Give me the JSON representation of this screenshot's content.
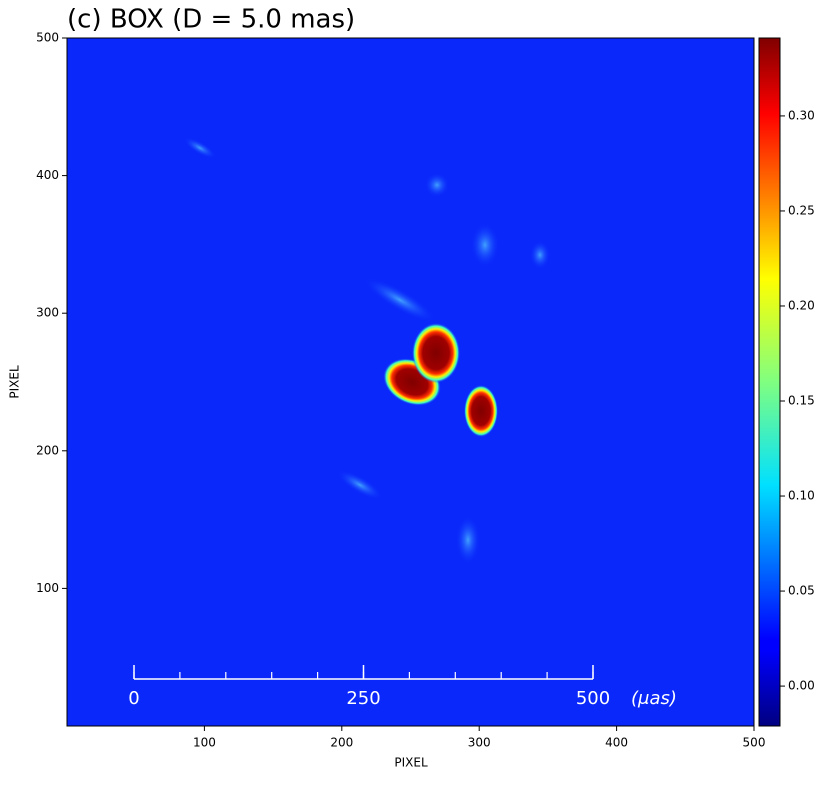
{
  "chart_data": {
    "type": "image",
    "title": "(c) BOX (D = 5.0 mas)",
    "x_label": "PIXEL",
    "y_label": "PIXEL",
    "xlim": [
      0,
      500
    ],
    "ylim": [
      0,
      500
    ],
    "xticks": [
      100,
      200,
      300,
      400,
      500
    ],
    "yticks": [
      100,
      200,
      300,
      400,
      500
    ],
    "colormap": "jet",
    "clim": [
      -0.021,
      0.341
    ],
    "cticks": [
      {
        "value": 0,
        "label": "0.00"
      },
      {
        "value": 0.05,
        "label": "0.05"
      },
      {
        "value": 0.1,
        "label": "0.10"
      },
      {
        "value": 0.15,
        "label": "0.15"
      },
      {
        "value": 0.2,
        "label": "0.20"
      },
      {
        "value": 0.25,
        "label": "0.25"
      },
      {
        "value": 0.3,
        "label": "0.30"
      }
    ],
    "scale_bar": {
      "ticks": [
        0,
        250,
        500
      ],
      "unit": "(μas)"
    }
  }
}
